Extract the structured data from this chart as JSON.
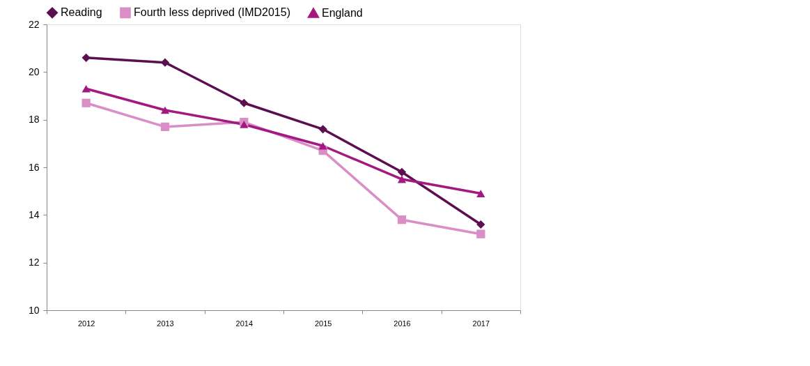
{
  "chart_data": {
    "type": "line",
    "categories": [
      "2012",
      "2013",
      "2014",
      "2015",
      "2016",
      "2017"
    ],
    "series": [
      {
        "name": "Reading",
        "color": "#5c0f50",
        "marker": "diamond",
        "values": [
          20.6,
          20.4,
          18.7,
          17.6,
          15.8,
          13.6
        ]
      },
      {
        "name": "Fourth less deprived (IMD2015)",
        "color": "#d98fc5",
        "marker": "square",
        "values": [
          18.7,
          17.7,
          17.9,
          16.7,
          13.8,
          13.2
        ]
      },
      {
        "name": "England",
        "color": "#a3197f",
        "marker": "triangle",
        "values": [
          19.3,
          18.4,
          17.8,
          16.9,
          15.5,
          14.9
        ]
      }
    ],
    "ylim": [
      10,
      22
    ],
    "yticks": [
      10,
      12,
      14,
      16,
      18,
      20,
      22
    ],
    "grid": false,
    "legend": "top left",
    "line_style": "solid"
  }
}
